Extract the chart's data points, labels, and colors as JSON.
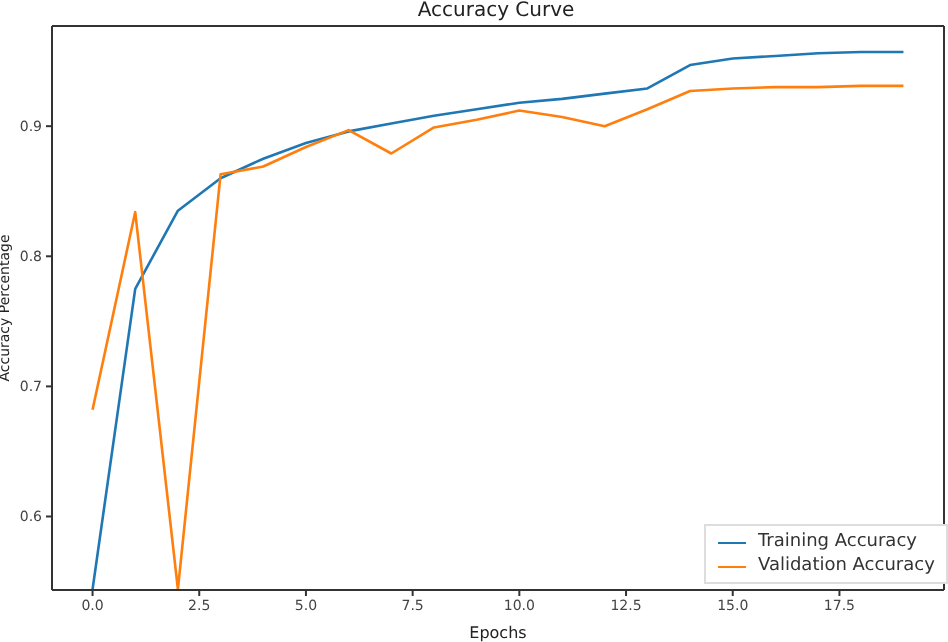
{
  "chart_data": {
    "type": "line",
    "title": "Accuracy Curve",
    "xlabel": "Epochs",
    "ylabel": "Accuracy Percentage",
    "x": [
      0,
      1,
      2,
      3,
      4,
      5,
      6,
      7,
      8,
      9,
      10,
      11,
      12,
      13,
      14,
      15,
      16,
      17,
      18,
      19
    ],
    "series": [
      {
        "name": "Training Accuracy",
        "color": "#1f77b4",
        "values": [
          0.544,
          0.775,
          0.835,
          0.86,
          0.875,
          0.887,
          0.896,
          0.902,
          0.908,
          0.913,
          0.918,
          0.921,
          0.925,
          0.929,
          0.947,
          0.952,
          0.954,
          0.956,
          0.957,
          0.957
        ]
      },
      {
        "name": "Validation Accuracy",
        "color": "#ff7f0e",
        "values": [
          0.682,
          0.834,
          0.544,
          0.863,
          0.869,
          0.884,
          0.897,
          0.879,
          0.899,
          0.905,
          0.912,
          0.907,
          0.9,
          0.913,
          0.927,
          0.929,
          0.93,
          0.93,
          0.931,
          0.931
        ]
      }
    ],
    "xlim": [
      -0.95,
      19.95
    ],
    "ylim": [
      0.5435,
      0.977
    ],
    "xticks": [
      {
        "value": 0,
        "label": "0.0"
      },
      {
        "value": 2.5,
        "label": "2.5"
      },
      {
        "value": 5,
        "label": "5.0"
      },
      {
        "value": 7.5,
        "label": "7.5"
      },
      {
        "value": 10,
        "label": "10.0"
      },
      {
        "value": 12.5,
        "label": "12.5"
      },
      {
        "value": 15,
        "label": "15.0"
      },
      {
        "value": 17.5,
        "label": "17.5"
      }
    ],
    "yticks": [
      0.6,
      0.7,
      0.8,
      0.9
    ],
    "legend": "bottom right",
    "grid": false,
    "marker": "none",
    "line_style": "solid"
  }
}
